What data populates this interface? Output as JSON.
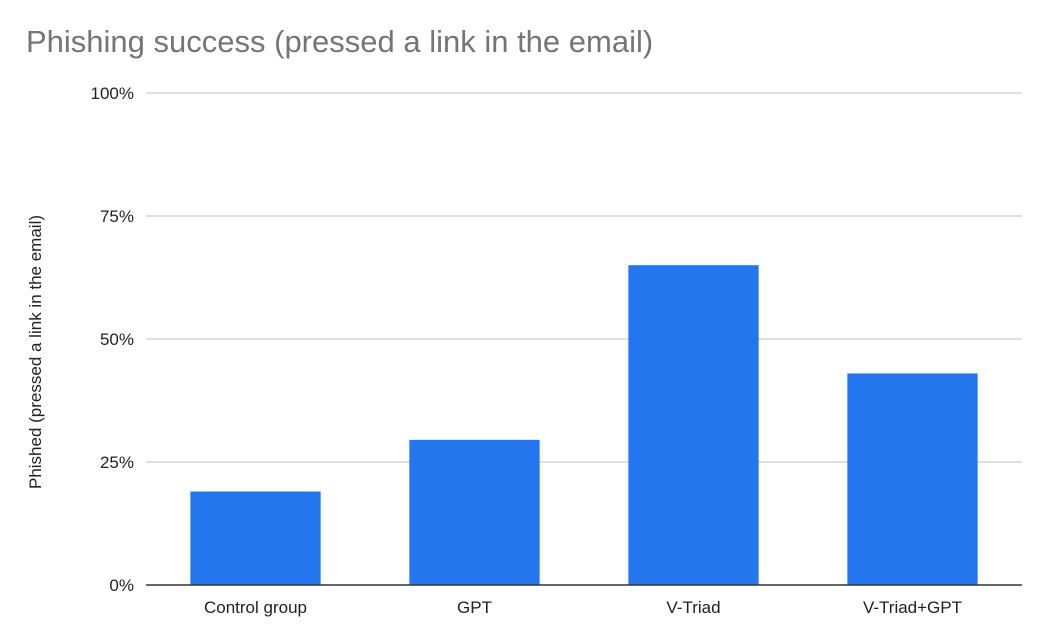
{
  "chart_data": {
    "type": "bar",
    "title": "Phishing success (pressed a link in the email)",
    "xlabel": "",
    "ylabel": "Phished (pressed a link in the email)",
    "categories": [
      "Control group",
      "GPT",
      "V-Triad",
      "V-Triad+GPT"
    ],
    "values": [
      19,
      29.5,
      65,
      43
    ],
    "unit": "%",
    "ylim": [
      0,
      100
    ],
    "yticks": [
      0,
      25,
      50,
      75,
      100
    ],
    "ytick_labels": [
      "0%",
      "25%",
      "50%",
      "75%",
      "100%"
    ],
    "grid": true,
    "legend": "none",
    "bar_color": "#2476ee",
    "grid_color": "#cccccc",
    "axis_color": "#333333"
  }
}
